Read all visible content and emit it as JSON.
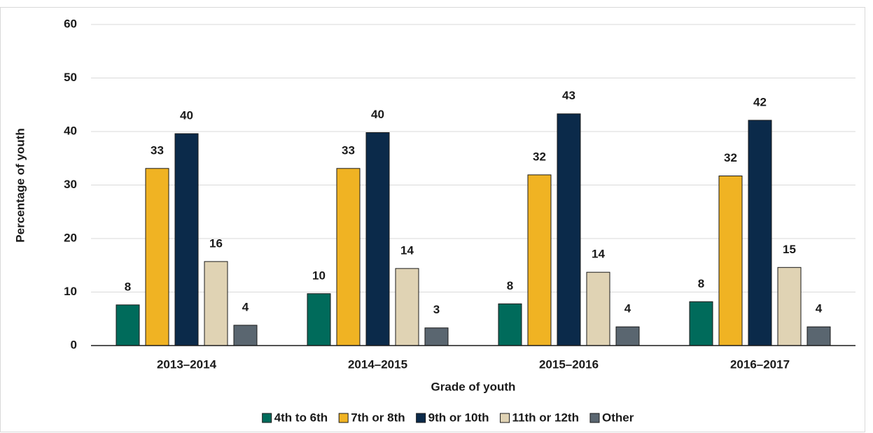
{
  "chart_data": {
    "type": "bar",
    "xlabel": "Grade of youth",
    "ylabel": "Percentage of youth",
    "categories": [
      "2013–2014",
      "2014–2015",
      "2015–2016",
      "2016–2017"
    ],
    "series": [
      {
        "name": "4th to 6th",
        "color": "#006b5b",
        "values": [
          7.6,
          9.7,
          7.8,
          8.2
        ],
        "value_labels": [
          "8",
          "10",
          "8",
          "8"
        ]
      },
      {
        "name": "7th or 8th",
        "color": "#f0b323",
        "values": [
          33.1,
          33.1,
          31.9,
          31.7
        ],
        "value_labels": [
          "33",
          "33",
          "32",
          "32"
        ]
      },
      {
        "name": "9th or 10th",
        "color": "#0b2a4a",
        "values": [
          39.6,
          39.8,
          43.3,
          42.1
        ],
        "value_labels": [
          "40",
          "40",
          "43",
          "42"
        ]
      },
      {
        "name": "11th or 12th",
        "color": "#e0d3b4",
        "values": [
          15.7,
          14.4,
          13.7,
          14.6
        ],
        "value_labels": [
          "16",
          "14",
          "14",
          "15"
        ]
      },
      {
        "name": "Other",
        "color": "#5a6670",
        "values": [
          3.8,
          3.3,
          3.5,
          3.5
        ],
        "value_labels": [
          "4",
          "3",
          "4",
          "4"
        ]
      }
    ],
    "ylim": [
      0,
      60
    ],
    "yticks": [
      0,
      10,
      20,
      30,
      40,
      50,
      60
    ],
    "grid": true,
    "legend": "bottom"
  }
}
